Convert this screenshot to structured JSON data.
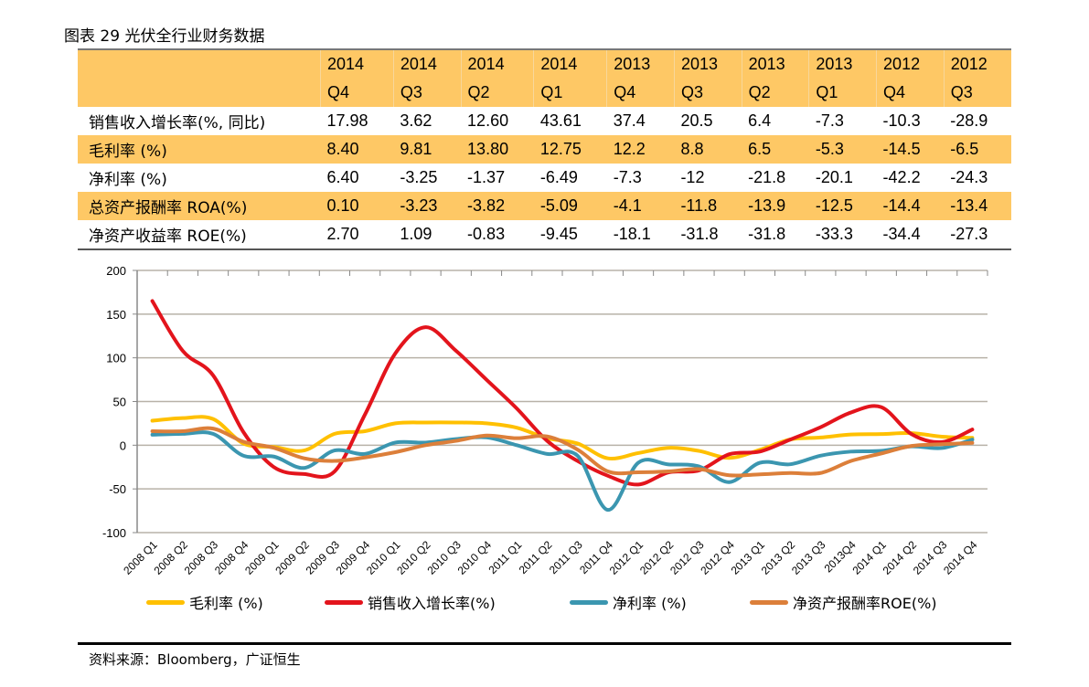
{
  "title": "图表 29 光伏全行业财务数据",
  "table": {
    "columns": [
      [
        "2014",
        "Q4"
      ],
      [
        "2014",
        "Q3"
      ],
      [
        "2014",
        "Q2"
      ],
      [
        "2014",
        "Q1"
      ],
      [
        "2013",
        "Q4"
      ],
      [
        "2013",
        "Q3"
      ],
      [
        "2013",
        "Q2"
      ],
      [
        "2013",
        "Q1"
      ],
      [
        "2012",
        "Q4"
      ],
      [
        "2012",
        "Q3"
      ]
    ],
    "rows": [
      {
        "label": "销售收入增长率(%, 同比)",
        "values": [
          "17.98",
          "3.62",
          "12.60",
          "43.61",
          "37.4",
          "20.5",
          "6.4",
          "-7.3",
          "-10.3",
          "-28.9"
        ]
      },
      {
        "label": "毛利率 (%)",
        "values": [
          "8.40",
          "9.81",
          "13.80",
          "12.75",
          "12.2",
          "8.8",
          "6.5",
          "-5.3",
          "-14.5",
          "-6.5"
        ]
      },
      {
        "label": "净利率 (%)",
        "values": [
          "6.40",
          "-3.25",
          "-1.37",
          "-6.49",
          "-7.3",
          "-12",
          "-21.8",
          "-20.1",
          "-42.2",
          "-24.3"
        ]
      },
      {
        "label": "总资产报酬率 ROA(%)",
        "values": [
          "0.10",
          "-3.23",
          "-3.82",
          "-5.09",
          "-4.1",
          "-11.8",
          "-13.9",
          "-12.5",
          "-14.4",
          "-13.4"
        ]
      },
      {
        "label": "净资产收益率 ROE(%)",
        "values": [
          "2.70",
          "1.09",
          "-0.83",
          "-9.45",
          "-18.1",
          "-31.8",
          "-31.8",
          "-33.3",
          "-34.4",
          "-27.3"
        ]
      }
    ]
  },
  "chart_data": {
    "type": "line",
    "ylim": [
      -100,
      200
    ],
    "yticks": [
      -100,
      -50,
      0,
      50,
      100,
      150,
      200
    ],
    "grid": true,
    "smooth": true,
    "legend_position": "bottom",
    "categories": [
      "2008 Q1",
      "2008 Q2",
      "2008 Q3",
      "2008 Q4",
      "2009 Q1",
      "2009 Q2",
      "2009 Q3",
      "2009 Q4",
      "2010 Q1",
      "2010 Q2",
      "2010 Q3",
      "2010 Q4",
      "2011 Q1",
      "2011 Q2",
      "2011 Q3",
      "2011 Q4",
      "2012 Q1",
      "2012 Q2",
      "2012 Q3",
      "2012 Q4",
      "2013 Q1",
      "2013 Q2",
      "2013 Q3",
      "2013Q4",
      "2014 Q1",
      "2014 Q2",
      "2014 Q3",
      "2014 Q4"
    ],
    "series": [
      {
        "name": "毛利率 (%)",
        "color": "#ffc000",
        "values": [
          28,
          31,
          30,
          2,
          -2,
          -6,
          13,
          16,
          25,
          26,
          26,
          25,
          20,
          8,
          2,
          -15,
          -9,
          -3,
          -6.5,
          -14.5,
          -5.3,
          6.5,
          8.8,
          12.2,
          12.75,
          13.8,
          9.81,
          8.4
        ]
      },
      {
        "name": "销售收入增长率(%)",
        "color": "#e3141c",
        "values": [
          165,
          108,
          80,
          15,
          -25,
          -33,
          -30,
          35,
          105,
          135,
          108,
          75,
          42,
          5,
          -18,
          -35,
          -45,
          -31,
          -28.9,
          -10.3,
          -7.3,
          6.4,
          20.5,
          37.4,
          43.61,
          12.6,
          3.62,
          17.98
        ]
      },
      {
        "name": "净利率 (%)",
        "color": "#3b96b0",
        "values": [
          12,
          13,
          13,
          -12,
          -13,
          -26,
          -6,
          -10,
          3,
          3,
          7,
          9,
          0,
          -10,
          -12,
          -74,
          -20,
          -22,
          -24.3,
          -42.2,
          -20.1,
          -21.8,
          -12,
          -7.3,
          -6.49,
          -1.37,
          -3.25,
          6.4
        ]
      },
      {
        "name": "净资产报酬率ROE(%)",
        "color": "#dc7f3a",
        "values": [
          16,
          16,
          19,
          4,
          -3,
          -15,
          -18,
          -14,
          -8,
          0,
          5,
          11,
          8,
          10,
          -5,
          -30,
          -31,
          -30,
          -27.3,
          -34.4,
          -33.3,
          -31.8,
          -31.8,
          -18.1,
          -9.45,
          -0.83,
          1.09,
          2.7
        ]
      }
    ]
  },
  "source": "资料来源：Bloomberg，广证恒生"
}
